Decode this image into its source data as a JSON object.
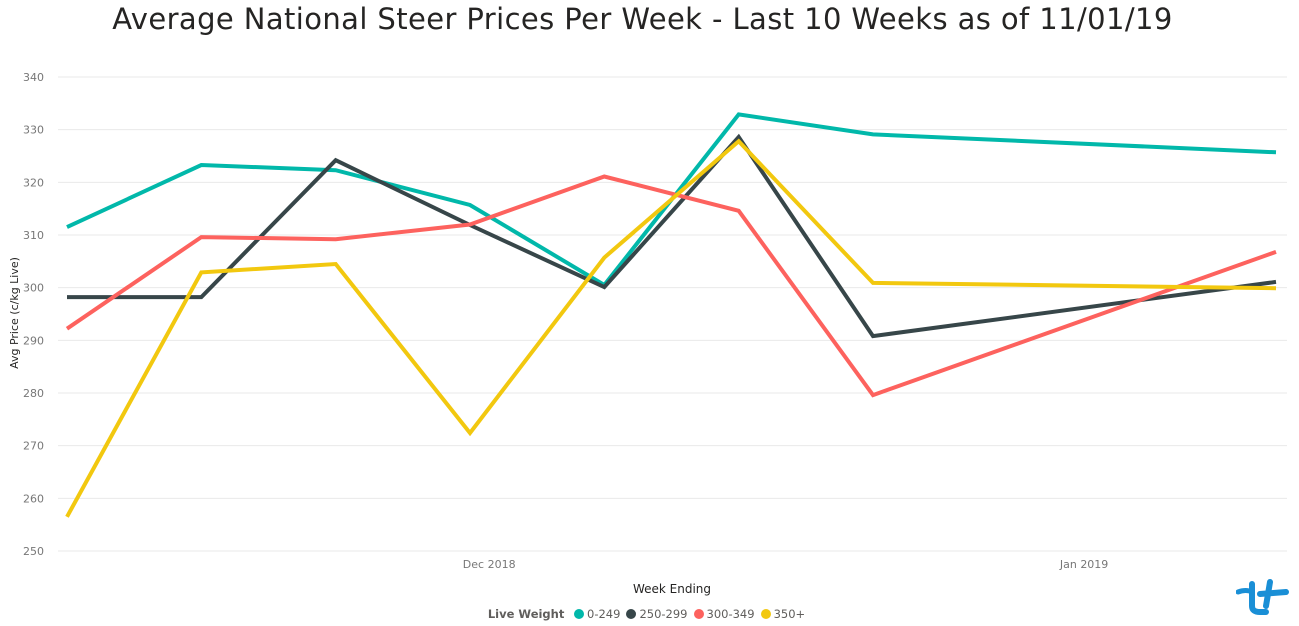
{
  "chart_data": {
    "type": "line",
    "title": "Average National Steer Prices Per Week - Last 10 Weeks as of 11/01/19",
    "xlabel": "Week Ending",
    "ylabel": "Avg Price (c/kg Live)",
    "x": [
      "2018-11-09",
      "2018-11-16",
      "2018-11-23",
      "2018-11-30",
      "2018-12-07",
      "2018-12-14",
      "2018-12-21",
      "2019-01-11"
    ],
    "x_ticks": [
      {
        "date": "2018-12-01",
        "label": "Dec 2018"
      },
      {
        "date": "2019-01-01",
        "label": "Jan 2019"
      }
    ],
    "ylim": [
      250,
      340
    ],
    "yticks": [
      250,
      260,
      270,
      280,
      290,
      300,
      310,
      320,
      330,
      340
    ],
    "grid": true,
    "legend": {
      "title": "Live Weight",
      "placement": "bottom-center"
    },
    "series": [
      {
        "name": "0-249",
        "color": "#01B8AA",
        "values": [
          311.5,
          323.3,
          322.3,
          315.7,
          300.5,
          332.9,
          329.1,
          325.7
        ]
      },
      {
        "name": "250-299",
        "color": "#374649",
        "values": [
          298.2,
          298.2,
          324.2,
          311.9,
          300.1,
          328.6,
          290.8,
          301.1
        ]
      },
      {
        "name": "300-349",
        "color": "#FD625E",
        "values": [
          292.2,
          309.6,
          309.2,
          312.0,
          321.1,
          314.6,
          279.6,
          306.8
        ]
      },
      {
        "name": "350+",
        "color": "#F2C80F",
        "values": [
          256.5,
          302.9,
          304.5,
          272.4,
          305.7,
          327.8,
          300.9,
          299.9
        ]
      }
    ]
  }
}
